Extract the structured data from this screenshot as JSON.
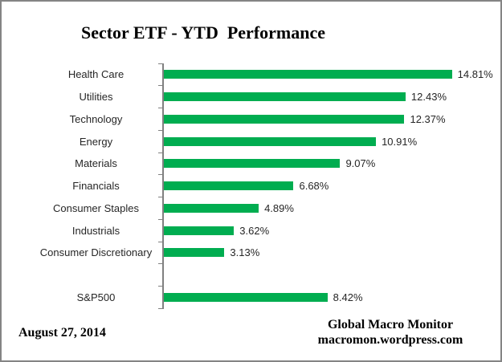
{
  "title": "Sector ETF - YTD  Performance",
  "footer": {
    "date": "August 27, 2014",
    "brand_line1": "Global Macro Monitor",
    "brand_line2": "macromon.wordpress.com"
  },
  "colors": {
    "bar": "#00AD50",
    "axis": "#808080",
    "border": "#848484",
    "text": "#262626",
    "title_text": "#000000"
  },
  "chart_data": {
    "type": "bar",
    "orientation": "horizontal",
    "title": "Sector ETF - YTD  Performance",
    "categories": [
      "Health Care",
      "Utilities",
      "Technology",
      "Energy",
      "Materials",
      "Financials",
      "Consumer Staples",
      "Industrials",
      "Consumer Discretionary",
      "S&P500"
    ],
    "values": [
      14.81,
      12.43,
      12.37,
      10.91,
      9.07,
      6.68,
      4.89,
      3.62,
      3.13,
      8.42
    ],
    "data_labels": [
      "14.81%",
      "12.43%",
      "12.37%",
      "10.91%",
      "9.07%",
      "6.68%",
      "4.89%",
      "3.62%",
      "3.13%",
      "8.42%"
    ],
    "value_unit": "%",
    "xlim": [
      0,
      16
    ],
    "gap_after_index": 8,
    "grid": false,
    "legend": false,
    "data_labels_shown": true,
    "value_axis_labels_shown": false
  }
}
